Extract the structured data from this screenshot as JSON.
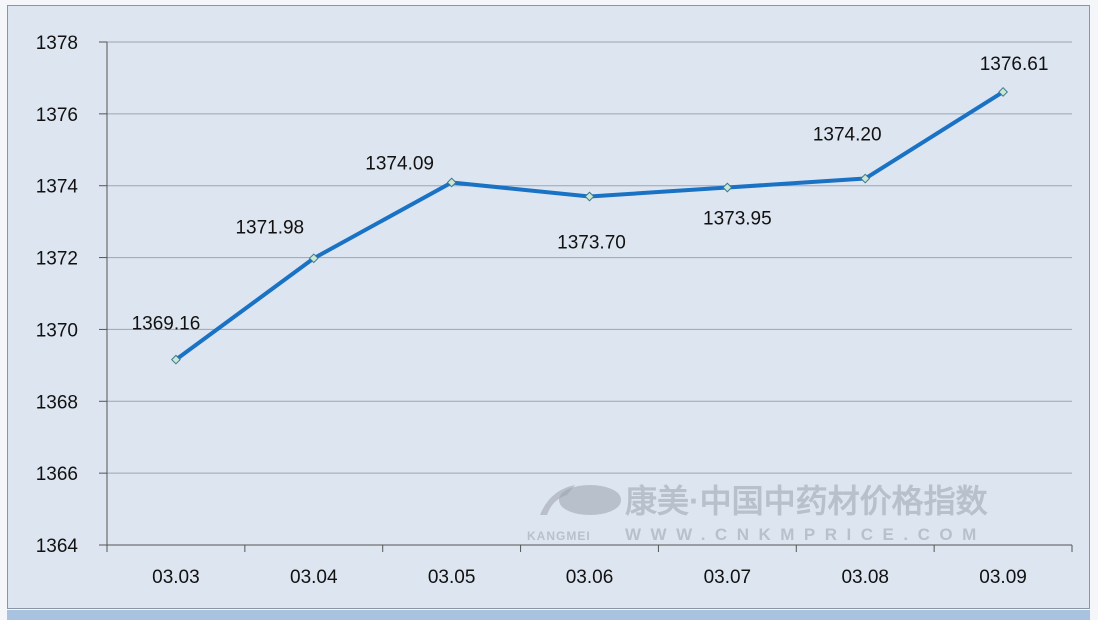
{
  "chart_data": {
    "type": "line",
    "categories": [
      "03.03",
      "03.04",
      "03.05",
      "03.06",
      "03.07",
      "03.08",
      "03.09"
    ],
    "values": [
      1369.16,
      1371.98,
      1374.09,
      1373.7,
      1373.95,
      1374.2,
      1376.61
    ],
    "data_labels": [
      "1369.16",
      "1371.98",
      "1374.09",
      "1373.70",
      "1373.95",
      "1374.20",
      "1376.61"
    ],
    "yticks": [
      "1364",
      "1366",
      "1368",
      "1370",
      "1372",
      "1374",
      "1376",
      "1378"
    ],
    "ylim": [
      1364,
      1378
    ],
    "grid": true,
    "line_color": "#1a72c4",
    "title": "",
    "xlabel": "",
    "ylabel": ""
  },
  "watermark": {
    "brand_cn": "康美·中国中药材价格指数",
    "brand_en": "KANGMEI",
    "url": "WWW.CNKMPRICE.COM"
  }
}
